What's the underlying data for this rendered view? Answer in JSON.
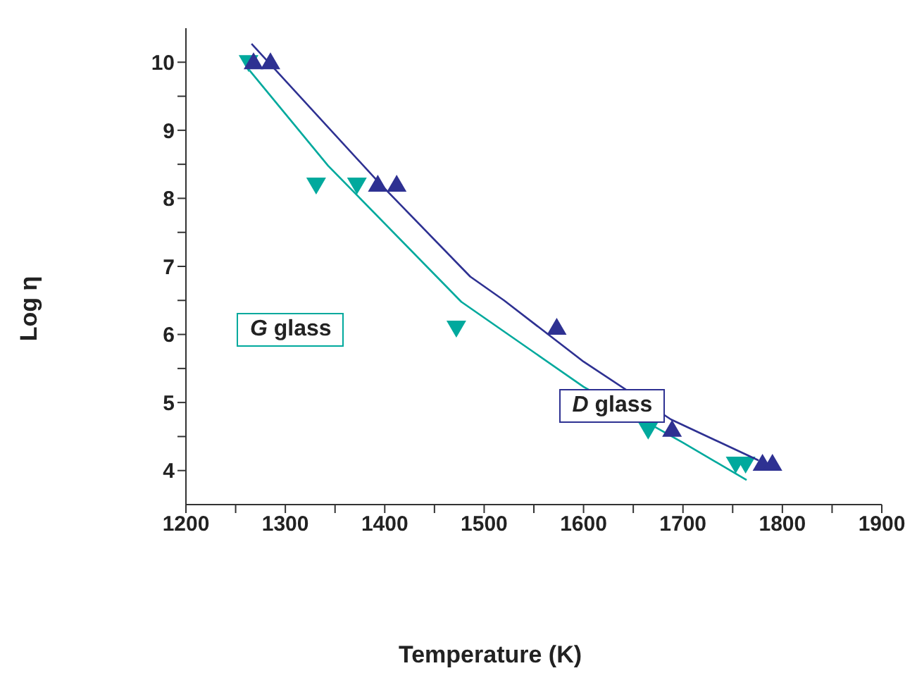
{
  "chart_data": {
    "type": "scatter",
    "xlabel": "Temperature (K)",
    "ylabel": "Log η",
    "xlim": [
      1200,
      1900
    ],
    "ylim": [
      3.5,
      10.5
    ],
    "xticks": [
      1200,
      {
        "value": 1250,
        "label": null
      },
      1300,
      {
        "value": 1350,
        "label": null
      },
      1400,
      {
        "value": 1450,
        "label": null
      },
      1500,
      {
        "value": 1550,
        "label": null
      },
      1600,
      {
        "value": 1650,
        "label": null
      },
      1700,
      {
        "value": 1750,
        "label": null
      },
      1800,
      {
        "value": 1850,
        "label": null
      },
      1900
    ],
    "yticks": [
      4,
      {
        "value": 4.5,
        "label": null
      },
      5,
      {
        "value": 5.5,
        "label": null
      },
      6,
      {
        "value": 6.5,
        "label": null
      },
      7,
      {
        "value": 7.5,
        "label": null
      },
      8,
      {
        "value": 8.5,
        "label": null
      },
      9,
      {
        "value": 9.5,
        "label": null
      },
      10
    ],
    "grid": false,
    "legend": false,
    "series": [
      {
        "name": "D glass",
        "marker": "triangle",
        "color": "#2e3192",
        "x": [
          1268,
          1285,
          1393,
          1412,
          1573,
          1689,
          1780,
          1790
        ],
        "values": [
          10.0,
          10.0,
          8.2,
          8.2,
          6.1,
          4.6,
          4.1,
          4.1
        ]
      },
      {
        "type": "line",
        "marker": "none",
        "color": "#2e3192",
        "x": [
          1266,
          1393,
          1486,
          1520,
          1600,
          1688,
          1776
        ],
        "values": [
          10.27,
          8.25,
          6.85,
          6.5,
          5.6,
          4.75,
          4.15
        ]
      },
      {
        "name": "G glass",
        "marker": "triangle-down",
        "color": "#00a99d",
        "x": [
          1263,
          1331,
          1372,
          1472,
          1665,
          1753,
          1763
        ],
        "values": [
          10.0,
          8.2,
          8.2,
          6.1,
          4.6,
          4.1,
          4.1
        ]
      },
      {
        "type": "line",
        "marker": "none",
        "color": "#00a99d",
        "x": [
          1264,
          1343,
          1477,
          1600,
          1700,
          1764
        ],
        "values": [
          9.88,
          8.48,
          6.48,
          5.23,
          4.41,
          3.86
        ]
      }
    ]
  }
}
